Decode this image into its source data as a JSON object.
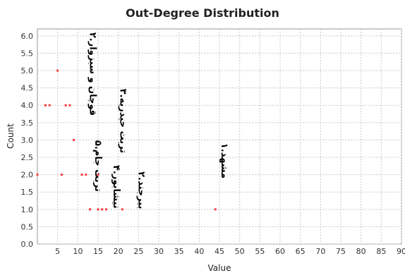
{
  "chart_data": {
    "type": "scatter",
    "title": "Out-Degree Distribution",
    "xlabel": "Value",
    "ylabel": "Count",
    "xlim": [
      0,
      90
    ],
    "ylim": [
      0,
      6.2
    ],
    "x_ticks": [
      5,
      10,
      15,
      20,
      25,
      30,
      35,
      40,
      45,
      50,
      55,
      60,
      65,
      70,
      75,
      80,
      85,
      90
    ],
    "y_ticks": [
      0.0,
      0.5,
      1.0,
      1.5,
      2.0,
      2.5,
      3.0,
      3.5,
      4.0,
      4.5,
      5.0,
      5.5,
      6.0
    ],
    "grid": true,
    "point_color": "#ff3b3b",
    "points": [
      {
        "x": 0,
        "y": 2
      },
      {
        "x": 2,
        "y": 4
      },
      {
        "x": 3,
        "y": 4
      },
      {
        "x": 5,
        "y": 5
      },
      {
        "x": 6,
        "y": 2
      },
      {
        "x": 7,
        "y": 4
      },
      {
        "x": 8,
        "y": 4
      },
      {
        "x": 9,
        "y": 3
      },
      {
        "x": 11,
        "y": 2
      },
      {
        "x": 12,
        "y": 2
      },
      {
        "x": 13,
        "y": 1
      },
      {
        "x": 15,
        "y": 2
      },
      {
        "x": 15,
        "y": 1
      },
      {
        "x": 16,
        "y": 1
      },
      {
        "x": 17,
        "y": 1
      },
      {
        "x": 21,
        "y": 1
      },
      {
        "x": 44,
        "y": 1
      }
    ],
    "annotations": [
      {
        "text": "۲.قوچان و سبزوار",
        "x": 13,
        "y": 4.9,
        "rotate": 90
      },
      {
        "text": "۳.تربت حیدریه",
        "x": 20.5,
        "y": 3.55,
        "rotate": 90
      },
      {
        "text": "۵.تربت جام",
        "x": 14.3,
        "y": 2.25,
        "rotate": 90
      },
      {
        "text": "۴.نیشابور",
        "x": 18.8,
        "y": 1.65,
        "rotate": 90
      },
      {
        "text": "۲.بیرجند",
        "x": 25,
        "y": 1.55,
        "rotate": 90
      },
      {
        "text": "۱.مشهد",
        "x": 45.5,
        "y": 2.4,
        "rotate": 90
      }
    ]
  }
}
